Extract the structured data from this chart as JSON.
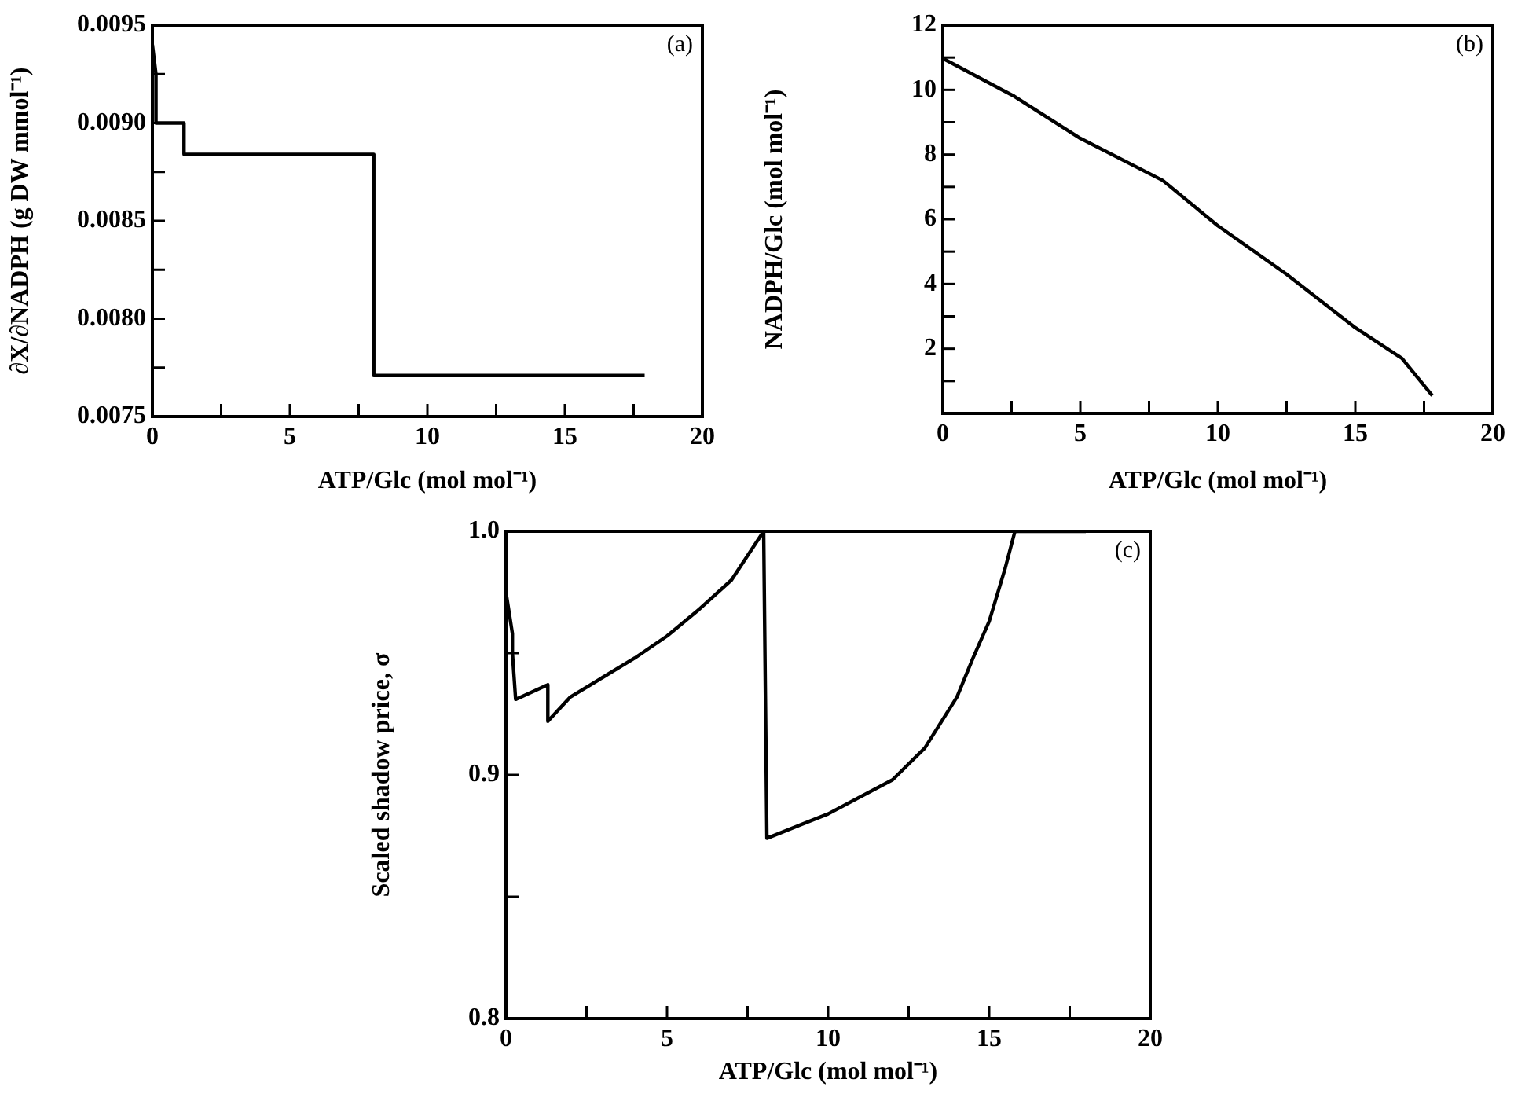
{
  "chart_data": [
    {
      "type": "line",
      "xlabel": "ATP/Glc (mol mol⁻¹)",
      "ylabel": "∂X/∂NADPH (g DW mmol⁻¹)",
      "annotations": [
        "(a)"
      ],
      "color": "#000000",
      "marker": "none",
      "grid": false,
      "legend": false,
      "x": [
        0,
        0.13,
        0.13,
        1.15,
        1.15,
        8.05,
        8.05,
        17.9
      ],
      "values": [
        0.0094,
        0.00925,
        0.009,
        0.009,
        0.00884,
        0.00884,
        0.00771,
        0.00771
      ],
      "xlim": [
        0,
        20
      ],
      "xticks": [
        0,
        {
          "value": 2.5,
          "label": null
        },
        5,
        {
          "value": 7.5,
          "label": null
        },
        10,
        {
          "value": 12.5,
          "label": null
        },
        15,
        {
          "value": 17.5,
          "label": null
        },
        20
      ],
      "ylim": [
        0.0075,
        0.0095
      ],
      "yticks": [
        0.0075,
        {
          "value": 0.00775,
          "label": null
        },
        {
          "value": 0.008,
          "label": "0.0080"
        },
        {
          "value": 0.00825,
          "label": null
        },
        0.0085,
        {
          "value": 0.00875,
          "label": null
        },
        {
          "value": 0.009,
          "label": "0.0090"
        },
        {
          "value": 0.00925,
          "label": null
        },
        0.0095
      ]
    },
    {
      "type": "line",
      "xlabel": "ATP/Glc (mol mol⁻¹)",
      "ylabel": "NADPH/Glc (mol mol⁻¹)",
      "annotations": [
        "(b)"
      ],
      "color": "#000000",
      "marker": "none",
      "grid": false,
      "legend": false,
      "x": [
        0.05,
        2.6,
        5,
        8,
        10,
        12.5,
        15,
        16.7,
        17.8
      ],
      "values": [
        10.95,
        9.8,
        8.5,
        7.2,
        5.8,
        4.3,
        2.65,
        1.7,
        0.55
      ],
      "xlim": [
        0,
        20
      ],
      "xticks": [
        0,
        {
          "value": 2.5,
          "label": null
        },
        5,
        {
          "value": 7.5,
          "label": null
        },
        10,
        {
          "value": 12.5,
          "label": null
        },
        15,
        {
          "value": 17.5,
          "label": null
        },
        20
      ],
      "ylim": [
        0,
        12
      ],
      "yticks": [
        {
          "value": 1,
          "label": null
        },
        2,
        {
          "value": 3,
          "label": null
        },
        4,
        {
          "value": 5,
          "label": null
        },
        6,
        {
          "value": 7,
          "label": null
        },
        8,
        {
          "value": 9,
          "label": null
        },
        10,
        {
          "value": 11,
          "label": null
        },
        12
      ]
    },
    {
      "type": "line",
      "xlabel": "ATP/Glc (mol mol⁻¹)",
      "ylabel": "Scaled shadow price, σ",
      "annotations": [
        "(c)"
      ],
      "color": "#000000",
      "marker": "none",
      "grid": false,
      "legend": false,
      "x": [
        0,
        0.2,
        0.2,
        0.3,
        1.3,
        1.3,
        2,
        3,
        4,
        5,
        6,
        7,
        8,
        8.1,
        10,
        12,
        13,
        14,
        14.5,
        15,
        15.5,
        15.8,
        18
      ],
      "values": [
        0.975,
        0.958,
        0.95,
        0.931,
        0.937,
        0.922,
        0.932,
        0.94,
        0.948,
        0.957,
        0.968,
        0.98,
        1.0,
        0.874,
        0.884,
        0.898,
        0.911,
        0.932,
        0.948,
        0.963,
        0.985,
        1.0,
        1.0
      ],
      "xlim": [
        0,
        20
      ],
      "xticks": [
        0,
        {
          "value": 2.5,
          "label": null
        },
        5,
        {
          "value": 7.5,
          "label": null
        },
        10,
        {
          "value": 12.5,
          "label": null
        },
        15,
        {
          "value": 17.5,
          "label": null
        },
        20
      ],
      "ylim": [
        0.8,
        1.0
      ],
      "yticks": [
        0.8,
        {
          "value": 0.85,
          "label": null
        },
        0.9,
        {
          "value": 0.95,
          "label": null
        },
        {
          "value": 1.0,
          "label": "1.0"
        }
      ]
    }
  ]
}
